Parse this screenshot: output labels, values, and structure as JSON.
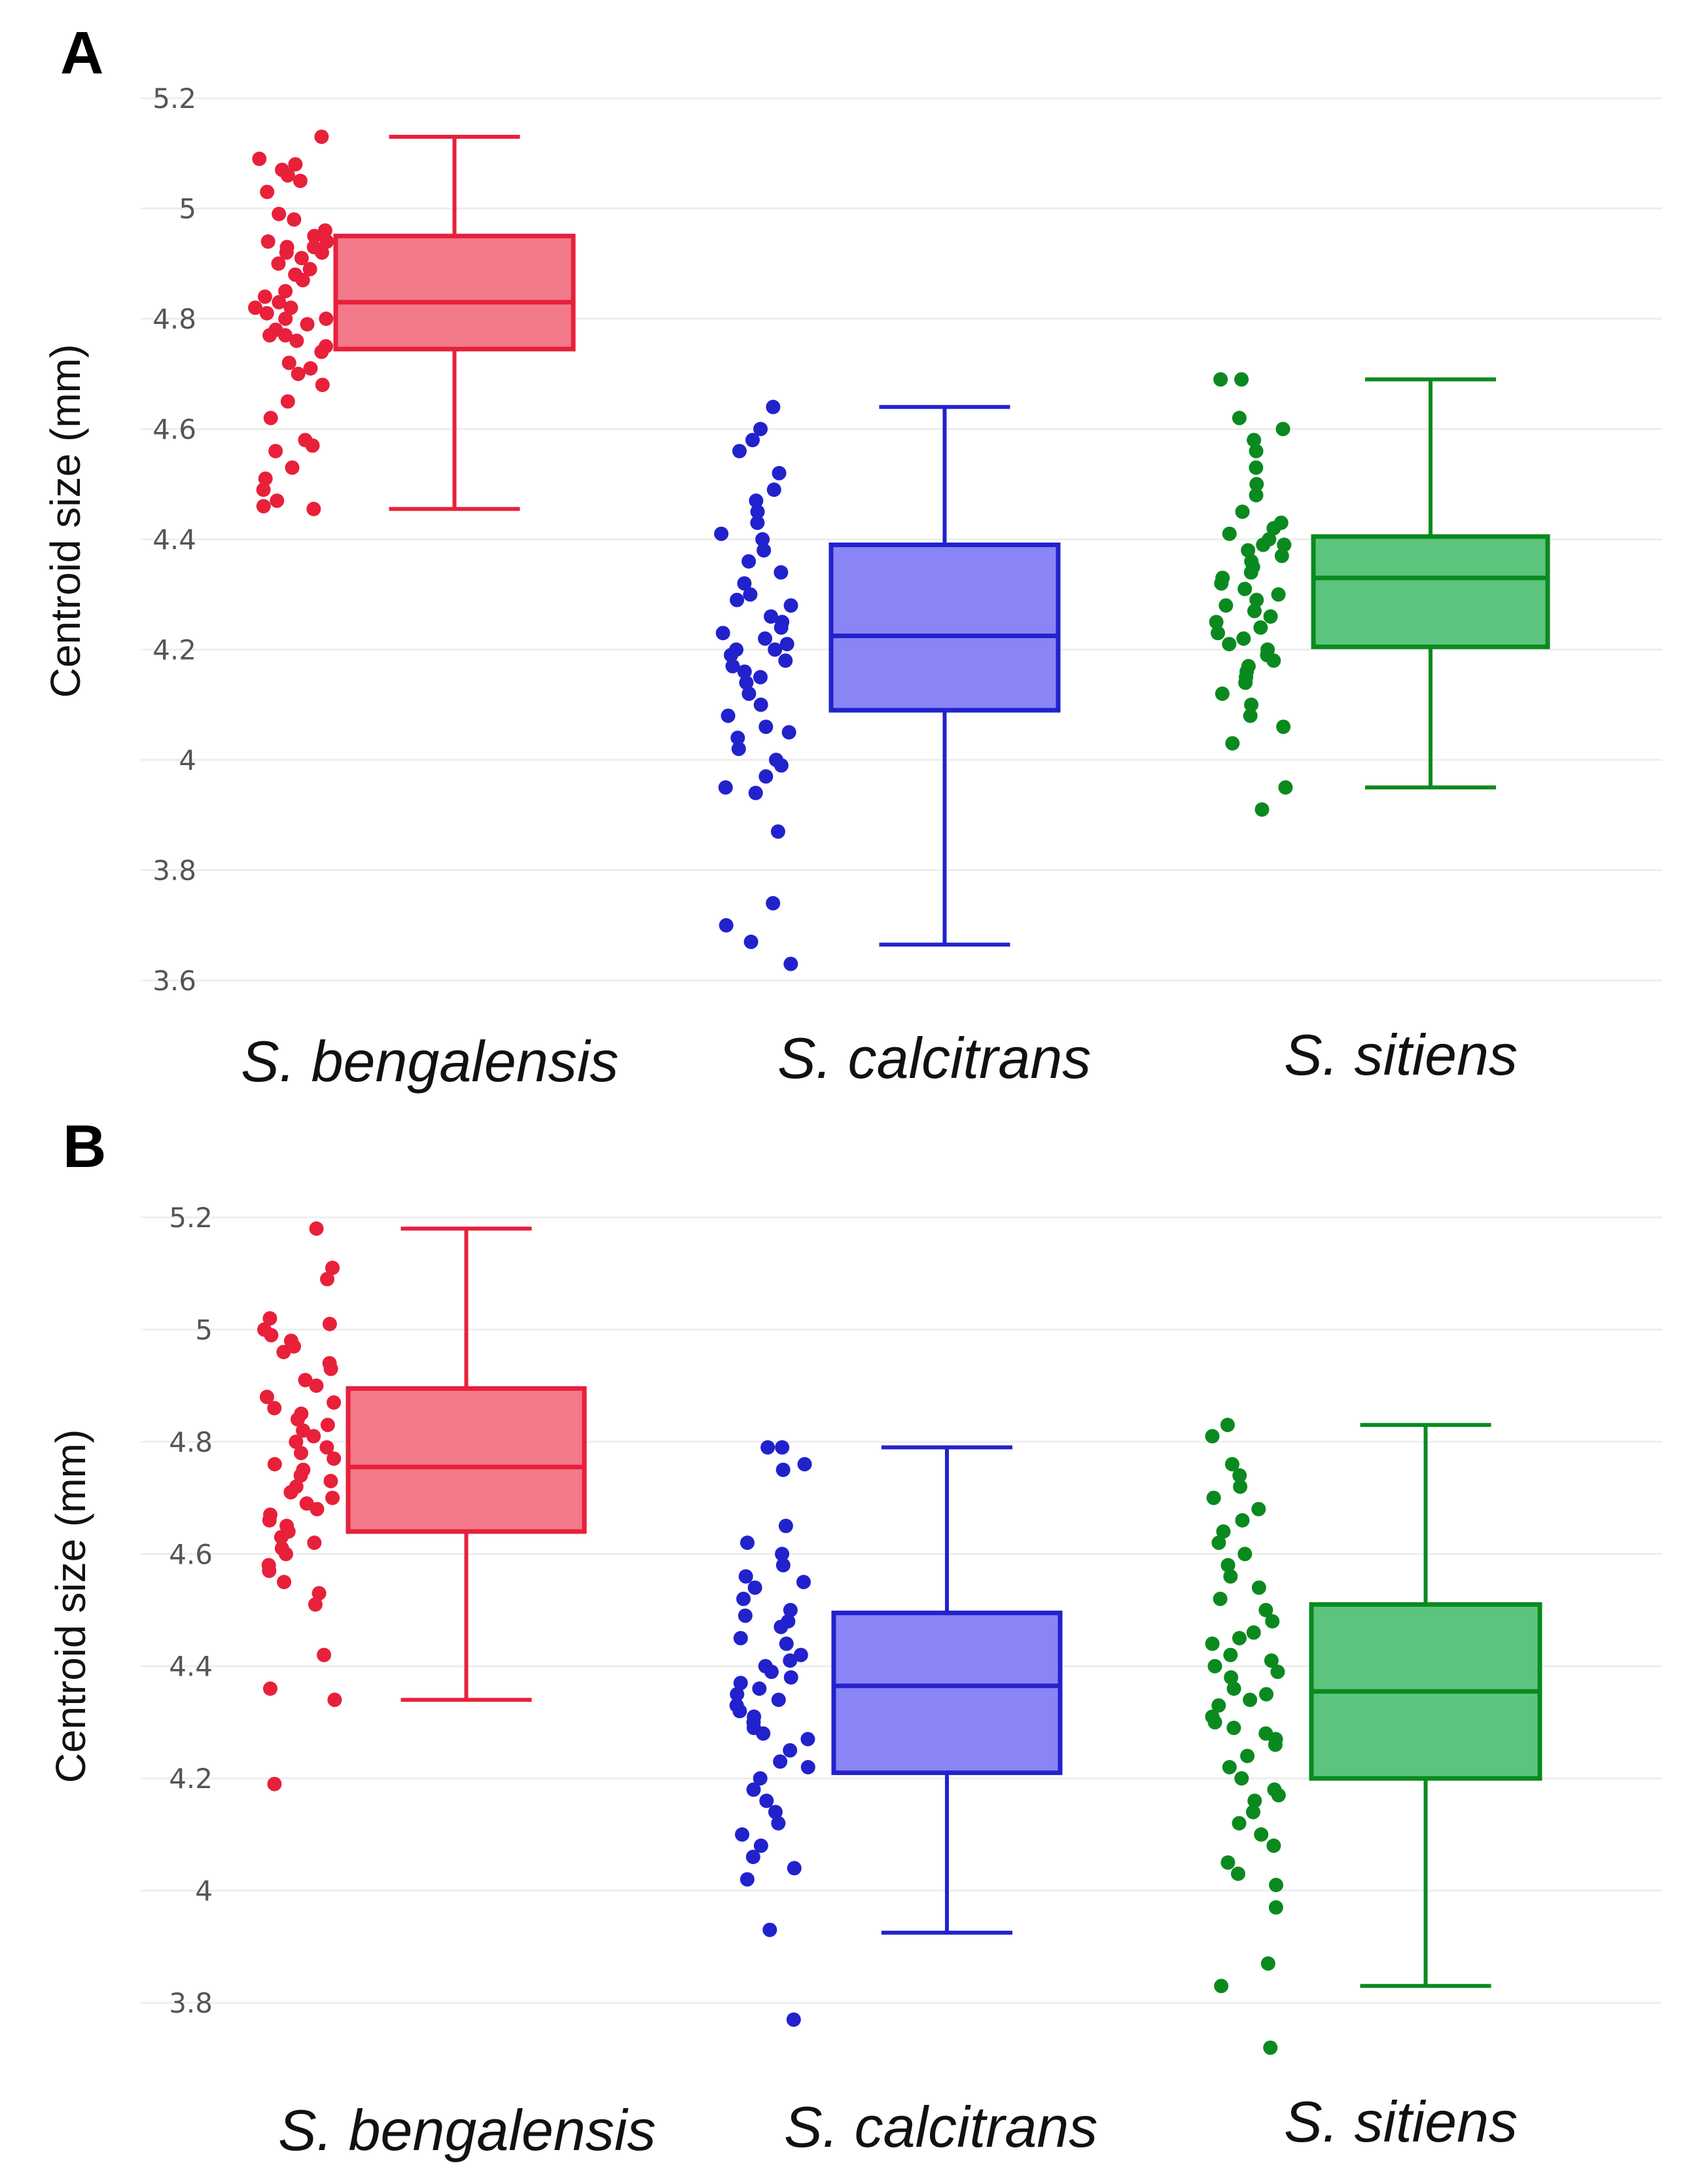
{
  "chart_data": [
    {
      "type": "box",
      "panel_label": "A",
      "ylabel": "Centroid size (mm)",
      "ylim": [
        3.6,
        5.2
      ],
      "yticks": [
        3.6,
        3.8,
        4,
        4.2,
        4.4,
        4.6,
        4.8,
        5,
        5.2
      ],
      "ytick_labels": [
        "3.6",
        "3.8",
        "4",
        "4.2",
        "4.4",
        "4.6",
        "4.8",
        "5",
        "5.2"
      ],
      "grid": true,
      "categories": [
        "S. bengalensis",
        "S. calcitrans",
        "S. sitiens"
      ],
      "series": [
        {
          "name": "S. bengalensis",
          "color": "#e8203a",
          "fill": "#f27a8a",
          "box": {
            "min": 4.455,
            "q1": 4.745,
            "median": 4.83,
            "q3": 4.95,
            "max": 5.13
          },
          "points": [
            5.13,
            5.09,
            5.08,
            5.07,
            5.06,
            5.05,
            5.03,
            4.99,
            4.98,
            4.96,
            4.95,
            4.94,
            4.94,
            4.93,
            4.93,
            4.92,
            4.92,
            4.91,
            4.9,
            4.89,
            4.88,
            4.87,
            4.85,
            4.84,
            4.83,
            4.82,
            4.82,
            4.81,
            4.8,
            4.8,
            4.79,
            4.78,
            4.77,
            4.77,
            4.76,
            4.75,
            4.74,
            4.72,
            4.71,
            4.7,
            4.68,
            4.65,
            4.62,
            4.58,
            4.57,
            4.56,
            4.53,
            4.51,
            4.49,
            4.47,
            4.46,
            4.455
          ]
        },
        {
          "name": "S. calcitrans",
          "color": "#2222cc",
          "fill": "#8a85f5",
          "box": {
            "min": 3.665,
            "q1": 4.09,
            "median": 4.225,
            "q3": 4.39,
            "max": 4.64
          },
          "points": [
            4.64,
            4.6,
            4.58,
            4.56,
            4.52,
            4.49,
            4.47,
            4.45,
            4.43,
            4.41,
            4.4,
            4.38,
            4.36,
            4.34,
            4.32,
            4.3,
            4.29,
            4.28,
            4.26,
            4.25,
            4.24,
            4.23,
            4.22,
            4.21,
            4.2,
            4.2,
            4.19,
            4.18,
            4.17,
            4.16,
            4.15,
            4.14,
            4.12,
            4.1,
            4.08,
            4.06,
            4.05,
            4.04,
            4.02,
            4.0,
            3.99,
            3.97,
            3.95,
            3.94,
            3.87,
            3.74,
            3.7,
            3.67,
            3.63
          ]
        },
        {
          "name": "S. sitiens",
          "color": "#0a8a1e",
          "fill": "#5dc47e",
          "box": {
            "min": 3.95,
            "q1": 4.205,
            "median": 4.33,
            "q3": 4.405,
            "max": 4.69
          },
          "points": [
            4.69,
            4.69,
            4.62,
            4.6,
            4.58,
            4.56,
            4.53,
            4.5,
            4.48,
            4.45,
            4.43,
            4.42,
            4.41,
            4.4,
            4.39,
            4.39,
            4.38,
            4.37,
            4.36,
            4.35,
            4.34,
            4.33,
            4.32,
            4.31,
            4.3,
            4.29,
            4.28,
            4.27,
            4.26,
            4.25,
            4.24,
            4.23,
            4.22,
            4.21,
            4.2,
            4.19,
            4.18,
            4.17,
            4.16,
            4.15,
            4.14,
            4.12,
            4.1,
            4.08,
            4.06,
            4.03,
            3.95,
            3.91
          ]
        }
      ]
    },
    {
      "type": "box",
      "panel_label": "B",
      "ylabel": "Centroid size (mm)",
      "ylim": [
        3.8,
        5.2
      ],
      "yticks": [
        3.8,
        4,
        4.2,
        4.4,
        4.6,
        4.8,
        5,
        5.2
      ],
      "ytick_labels": [
        "3.8",
        "4",
        "4.2",
        "4.4",
        "4.6",
        "4.8",
        "5",
        "5.2"
      ],
      "grid": true,
      "categories": [
        "S. bengalensis",
        "S. calcitrans",
        "S. sitiens"
      ],
      "series": [
        {
          "name": "S. bengalensis",
          "color": "#e8203a",
          "fill": "#f27a8a",
          "box": {
            "min": 4.34,
            "q1": 4.64,
            "median": 4.755,
            "q3": 4.895,
            "max": 5.18
          },
          "points": [
            5.18,
            5.11,
            5.09,
            5.02,
            5.01,
            5.0,
            4.99,
            4.98,
            4.97,
            4.96,
            4.94,
            4.93,
            4.91,
            4.9,
            4.88,
            4.87,
            4.86,
            4.85,
            4.84,
            4.83,
            4.82,
            4.81,
            4.8,
            4.79,
            4.78,
            4.77,
            4.76,
            4.75,
            4.74,
            4.73,
            4.72,
            4.71,
            4.7,
            4.69,
            4.68,
            4.67,
            4.66,
            4.65,
            4.64,
            4.63,
            4.62,
            4.61,
            4.6,
            4.58,
            4.57,
            4.55,
            4.53,
            4.51,
            4.42,
            4.36,
            4.34,
            4.19
          ]
        },
        {
          "name": "S. calcitrans",
          "color": "#2222cc",
          "fill": "#8a85f5",
          "box": {
            "min": 3.925,
            "q1": 4.21,
            "median": 4.365,
            "q3": 4.495,
            "max": 4.79
          },
          "points": [
            4.79,
            4.79,
            4.76,
            4.75,
            4.65,
            4.62,
            4.6,
            4.58,
            4.56,
            4.55,
            4.54,
            4.52,
            4.5,
            4.49,
            4.48,
            4.47,
            4.45,
            4.44,
            4.42,
            4.41,
            4.4,
            4.39,
            4.38,
            4.37,
            4.36,
            4.35,
            4.34,
            4.33,
            4.32,
            4.31,
            4.3,
            4.29,
            4.28,
            4.27,
            4.25,
            4.23,
            4.22,
            4.2,
            4.18,
            4.16,
            4.14,
            4.12,
            4.1,
            4.08,
            4.06,
            4.04,
            4.02,
            3.93,
            3.77
          ]
        },
        {
          "name": "S. sitiens",
          "color": "#0a8a1e",
          "fill": "#5dc47e",
          "box": {
            "min": 3.83,
            "q1": 4.2,
            "median": 4.355,
            "q3": 4.51,
            "max": 4.83
          },
          "points": [
            4.83,
            4.81,
            4.76,
            4.74,
            4.72,
            4.7,
            4.68,
            4.66,
            4.64,
            4.62,
            4.6,
            4.58,
            4.56,
            4.54,
            4.52,
            4.5,
            4.48,
            4.46,
            4.45,
            4.44,
            4.42,
            4.41,
            4.4,
            4.39,
            4.38,
            4.36,
            4.35,
            4.34,
            4.33,
            4.31,
            4.3,
            4.29,
            4.28,
            4.27,
            4.26,
            4.24,
            4.22,
            4.2,
            4.18,
            4.17,
            4.16,
            4.14,
            4.12,
            4.1,
            4.08,
            4.05,
            4.03,
            4.01,
            3.97,
            3.87,
            3.83,
            3.72
          ]
        }
      ]
    }
  ]
}
